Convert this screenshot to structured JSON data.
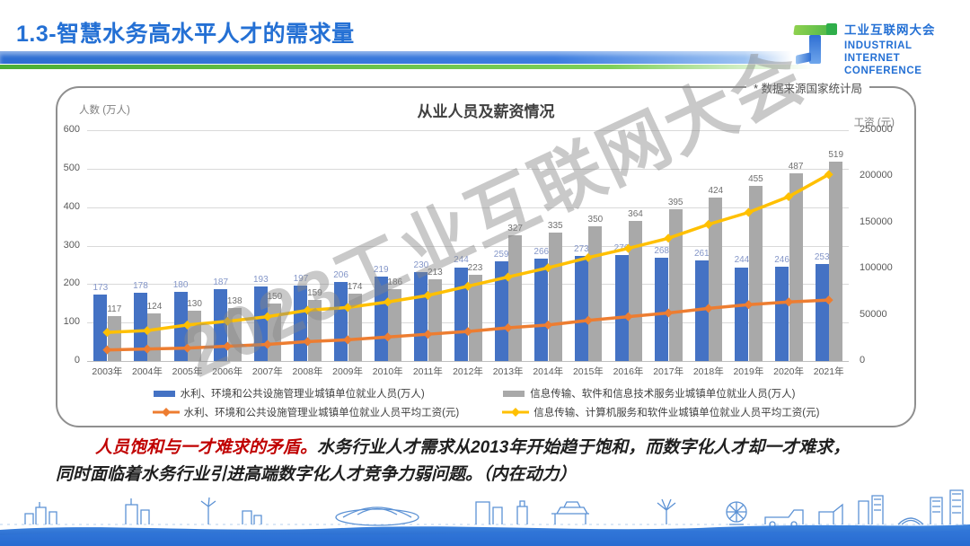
{
  "header": {
    "title": "1.3-智慧水务高水平人才的需求量",
    "logo": {
      "cn": "工业互联网大会",
      "en1": "INDUSTRIAL",
      "en2": "INTERNET",
      "en3": "CONFERENCE"
    }
  },
  "chart": {
    "source_note": "* 数据来源国家统计局",
    "watermark": "2023工业互联网大会"
  },
  "chart_data": {
    "type": "bar+line combo",
    "title": "从业人员及薪资情况",
    "categories": [
      "2003年",
      "2004年",
      "2005年",
      "2006年",
      "2007年",
      "2008年",
      "2009年",
      "2010年",
      "2011年",
      "2012年",
      "2013年",
      "2014年",
      "2015年",
      "2016年",
      "2017年",
      "2018年",
      "2019年",
      "2020年",
      "2021年"
    ],
    "left_axis": {
      "label": "人数 (万人)",
      "min": 0,
      "max": 600,
      "ticks": [
        0,
        100,
        200,
        300,
        400,
        500,
        600
      ]
    },
    "right_axis": {
      "label": "工资 (元)",
      "min": 0,
      "max": 250000,
      "ticks": [
        0,
        50000,
        100000,
        150000,
        200000,
        250000
      ]
    },
    "grid": true,
    "legend_position": "bottom",
    "series": [
      {
        "name": "水利、环境和公共设施管理业城镇单位就业人员(万人)",
        "type": "bar",
        "axis": "left",
        "color": "#4472C4",
        "label_color": "#8496c8",
        "values": [
          173,
          178,
          180,
          187,
          193,
          197,
          206,
          219,
          230,
          244,
          259,
          266,
          273,
          276,
          268,
          261,
          244,
          246,
          253
        ]
      },
      {
        "name": "信息传输、软件和信息技术服务业城镇单位就业人员(万人)",
        "type": "bar",
        "axis": "left",
        "color": "#A9A9A9",
        "label_color": "#6f6f6f",
        "values": [
          117,
          124,
          130,
          138,
          150,
          159,
          174,
          186,
          213,
          223,
          327,
          335,
          350,
          364,
          395,
          424,
          455,
          487,
          519
        ]
      },
      {
        "name": "水利、环境和公共设施管理业城镇单位就业人员平均工资(元)",
        "type": "line",
        "axis": "right",
        "color": "#ED7D31",
        "values": [
          12000,
          13000,
          14000,
          16000,
          18000,
          21000,
          23000,
          26000,
          29000,
          32000,
          36000,
          39000,
          44000,
          48000,
          52000,
          57000,
          61000,
          64000,
          66000
        ]
      },
      {
        "name": "信息传输、计算机服务和软件业城镇单位就业人员平均工资(元)",
        "type": "line",
        "axis": "right",
        "color": "#FFC000",
        "values": [
          31000,
          33000,
          39000,
          43000,
          48000,
          55000,
          58000,
          64000,
          71000,
          81000,
          91000,
          101000,
          112000,
          122000,
          133000,
          148000,
          161000,
          178000,
          202000
        ]
      }
    ]
  },
  "footer": {
    "emphasis": "人员饱和与一才难求的矛盾。",
    "line1_rest": "水务行业人才需求从2013年开始趋于饱和，而数字化人才却一才难求，",
    "line2": "同时面临着水务行业引进高端数字化人才竞争力弱问题。（内在动力）"
  }
}
